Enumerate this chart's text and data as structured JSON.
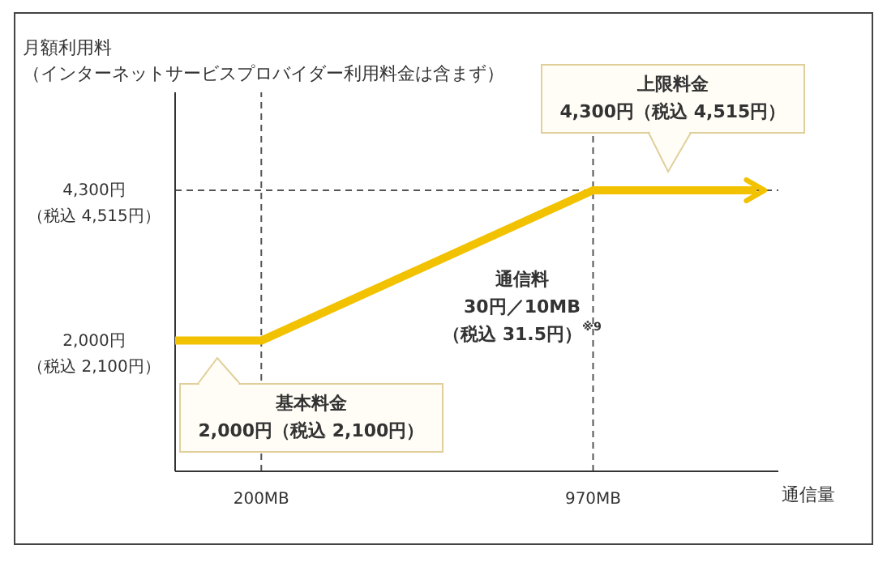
{
  "chart_data": {
    "type": "line",
    "ylabel": "月額利用料（インターネットサービスプロバイダー利用料金は含まず）",
    "xlabel": "通信量",
    "xlim": [
      0,
      1400
    ],
    "ylim": [
      0,
      5800
    ],
    "xticks": [
      {
        "value": 200,
        "label": "200MB"
      },
      {
        "value": 970,
        "label": "970MB"
      }
    ],
    "yticks": [
      {
        "value": 2000,
        "label": "2,000円"
      },
      {
        "value": 4300,
        "label": "4,300円"
      }
    ],
    "series": [
      {
        "color": "#f2c200",
        "x": [
          0,
          200,
          970,
          1350
        ],
        "values": [
          2000,
          2000,
          4300,
          4300
        ]
      }
    ],
    "ref_lines": [
      {
        "axis": "x",
        "value": 200,
        "line_style": "dashed",
        "color": "#555555"
      },
      {
        "axis": "x",
        "value": 970,
        "line_style": "dashed",
        "color": "#555555"
      },
      {
        "axis": "y",
        "value": 4300,
        "line_style": "dashed",
        "color": "#555555"
      }
    ],
    "annotations": [
      "（税込 2,100円）",
      "（税込 4,515円）",
      "基本料金\n2,000円（税込 2,100円）",
      {
        "text": "通信料\n30円／10MB\n（税込 31.5円）$^{※9}$",
        "x": 700,
        "y": 3500
      },
      "上限料金\n4,300円（税込 4,515円）"
    ]
  }
}
